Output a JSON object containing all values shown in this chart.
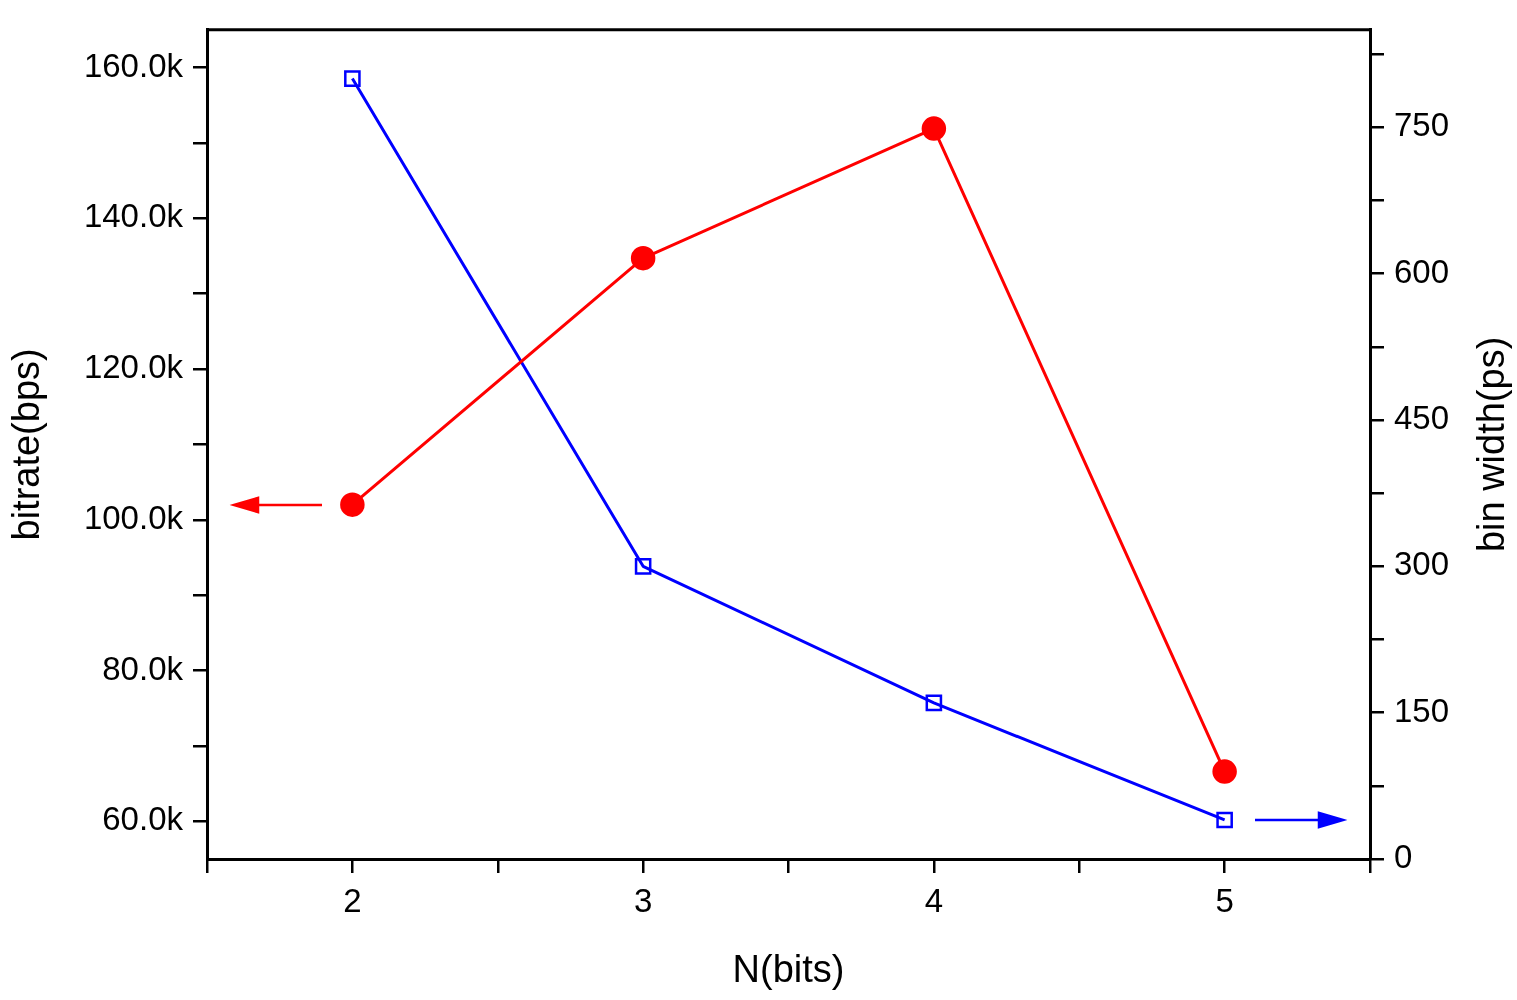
{
  "chart_data": {
    "type": "line",
    "xlabel": "N(bits)",
    "ylabel": "bitrate(bps)",
    "y2label": "bin width(ps)",
    "x": [
      2,
      3,
      4,
      5
    ],
    "series": [
      {
        "color": "#ff0000",
        "values": [
          102000,
          134700,
          151900,
          66600
        ],
        "marker": "circle"
      },
      {
        "color": "#0000ff",
        "values": [
          800,
          300,
          160,
          40
        ],
        "axis": "y2",
        "marker": "square"
      }
    ],
    "xlim": [
      1.5,
      5.5
    ],
    "xticks": [
      {
        "value": 1.5,
        "label": null
      },
      2,
      {
        "value": 2.5,
        "label": null
      },
      3,
      {
        "value": 3.5,
        "label": null
      },
      4,
      {
        "value": 4.5,
        "label": null
      },
      5,
      {
        "value": 5.5,
        "label": null
      }
    ],
    "ylim": [
      55000,
      165000
    ],
    "yticks": [
      {
        "value": 60000,
        "label": "60.0k"
      },
      {
        "value": 70000,
        "label": null
      },
      {
        "value": 80000,
        "label": "80.0k"
      },
      {
        "value": 90000,
        "label": null
      },
      {
        "value": 100000,
        "label": "100.0k"
      },
      {
        "value": 110000,
        "label": null
      },
      {
        "value": 120000,
        "label": "120.0k"
      },
      {
        "value": 130000,
        "label": null
      },
      {
        "value": 140000,
        "label": "140.0k"
      },
      {
        "value": 150000,
        "label": null
      },
      {
        "value": 160000,
        "label": "160.0k"
      }
    ],
    "y2lim": [
      0,
      850
    ],
    "y2ticks": [
      0,
      {
        "value": 75,
        "label": null
      },
      150,
      {
        "value": 225,
        "label": null
      },
      300,
      {
        "value": 375,
        "label": null
      },
      450,
      {
        "value": 525,
        "label": null
      },
      600,
      {
        "value": 675,
        "label": null
      },
      750,
      {
        "value": 825,
        "label": null
      }
    ],
    "grid": false,
    "legend": false,
    "line_style": "solid"
  }
}
